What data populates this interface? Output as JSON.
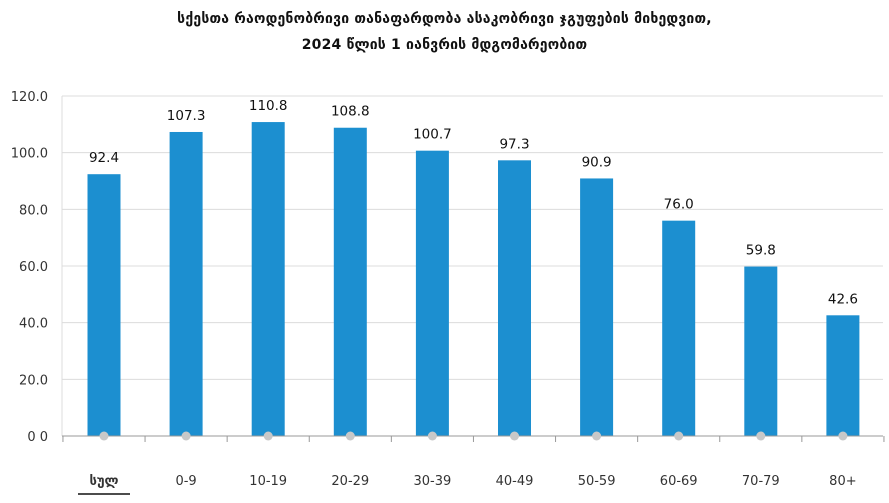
{
  "chart_data": {
    "type": "bar",
    "title": "სქესთა რაოდენობრივი თანაფარდობა ასაკობრივი ჯგუფების მიხედვით,",
    "subtitle": "2024 წლის 1 იანვრის მდგომარეობით",
    "categories": [
      "სულ",
      "0-9",
      "10-19",
      "20-29",
      "30-39",
      "40-49",
      "50-59",
      "60-69",
      "70-79",
      "80+"
    ],
    "values": [
      92.4,
      107.3,
      110.8,
      108.8,
      100.7,
      97.3,
      90.9,
      76.0,
      59.8,
      42.6
    ],
    "value_labels": [
      "92.4",
      "107.3",
      "110.8",
      "108.8",
      "100.7",
      "97.3",
      "90.9",
      "76.0",
      "59.8",
      "42.6"
    ],
    "y_ticks": [
      0,
      20,
      40,
      60,
      80,
      100,
      120
    ],
    "y_tick_labels": [
      "0 0",
      "20.0",
      "40.0",
      "60.0",
      "80.0",
      "100.0",
      "120.0"
    ],
    "ylim": [
      0,
      120
    ],
    "xlabel": "",
    "ylabel": "",
    "grid": true,
    "legend": "none",
    "colors": {
      "bar": "#1c8fd0",
      "grid": "#dcdcdc",
      "axis": "#999999",
      "marker": "#c8c8c8"
    }
  }
}
